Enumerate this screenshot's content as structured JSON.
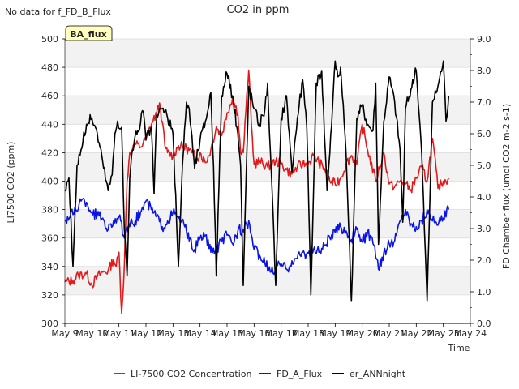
{
  "nodata_note": "No data for f_FD_B_Flux",
  "badge": "BA_flux",
  "chart_data": {
    "type": "line",
    "title": "CO2 in ppm",
    "xlabel": "Time",
    "ylabel_left": "LI7500 CO2 (ppm)",
    "ylabel_right": "FD Chamber flux (umol CO2 m-2 s-1)",
    "x_ticks": [
      "May 9",
      "May 10",
      "May 11",
      "May 12",
      "May 13",
      "May 14",
      "May 15",
      "May 16",
      "May 17",
      "May 18",
      "May 19",
      "May 20",
      "May 21",
      "May 22",
      "May 23",
      "May 24"
    ],
    "xlim": [
      0,
      15
    ],
    "ylim_left": [
      300,
      500
    ],
    "ylim_right": [
      0.0,
      9.0
    ],
    "yticks_left": [
      300,
      320,
      340,
      360,
      380,
      400,
      420,
      440,
      460,
      480,
      500
    ],
    "yticks_right": [
      "0.0",
      "1.0",
      "2.0",
      "3.0",
      "4.0",
      "5.0",
      "6.0",
      "7.0",
      "8.0",
      "9.0"
    ],
    "grid": true,
    "legend_placement": "bottom",
    "series": [
      {
        "name": "LI-7500 CO2 Concentration",
        "axis": "left",
        "color": "#e31a1c",
        "x": [
          0.0,
          0.3,
          0.5,
          0.8,
          1.0,
          1.2,
          1.4,
          1.6,
          1.8,
          1.9,
          2.0,
          2.1,
          2.2,
          2.3,
          2.4,
          2.5,
          2.6,
          2.8,
          3.0,
          3.2,
          3.4,
          3.5,
          3.6,
          3.7,
          3.8,
          4.0,
          4.2,
          4.5,
          4.7,
          4.9,
          5.0,
          5.2,
          5.4,
          5.6,
          5.8,
          6.0,
          6.2,
          6.4,
          6.5,
          6.6,
          6.7,
          6.8,
          6.9,
          7.0,
          7.2,
          7.5,
          7.8,
          8.0,
          8.2,
          8.4,
          8.6,
          8.8,
          9.0,
          9.2,
          9.4,
          9.6,
          9.8,
          10.0,
          10.2,
          10.4,
          10.6,
          10.8,
          11.0,
          11.2,
          11.5,
          11.8,
          12.0,
          12.2,
          12.4,
          12.6,
          12.8,
          13.0,
          13.2,
          13.4,
          13.6,
          13.8,
          14.0,
          14.2
        ],
        "y": [
          329,
          330,
          334,
          335,
          327,
          333,
          336,
          337,
          345,
          340,
          350,
          307,
          340,
          400,
          420,
          422,
          426,
          424,
          430,
          440,
          448,
          455,
          442,
          425,
          420,
          418,
          425,
          423,
          420,
          416,
          420,
          413,
          422,
          438,
          432,
          448,
          458,
          448,
          420,
          420,
          450,
          478,
          440,
          412,
          414,
          410,
          414,
          412,
          408,
          405,
          410,
          412,
          412,
          418,
          413,
          409,
          400,
          398,
          402,
          412,
          418,
          412,
          440,
          422,
          400,
          420,
          398,
          396,
          400,
          398,
          394,
          402,
          410,
          400,
          430,
          395,
          400,
          402
        ],
        "noise": 3.5
      },
      {
        "name": "FD_A_Flux",
        "axis": "left",
        "color": "#0a14e6",
        "x": [
          0.0,
          0.2,
          0.4,
          0.6,
          0.8,
          1.0,
          1.2,
          1.4,
          1.6,
          1.8,
          2.0,
          2.2,
          2.4,
          2.6,
          2.8,
          3.0,
          3.2,
          3.4,
          3.6,
          3.8,
          4.0,
          4.2,
          4.4,
          4.6,
          4.8,
          5.0,
          5.2,
          5.4,
          5.6,
          5.8,
          6.0,
          6.2,
          6.4,
          6.6,
          6.8,
          7.0,
          7.2,
          7.4,
          7.6,
          7.8,
          8.0,
          8.2,
          8.4,
          8.6,
          8.8,
          9.0,
          9.2,
          9.4,
          9.6,
          9.8,
          10.0,
          10.2,
          10.4,
          10.6,
          10.8,
          11.0,
          11.2,
          11.4,
          11.6,
          11.8,
          12.0,
          12.2,
          12.4,
          12.6,
          12.8,
          13.0,
          13.2,
          13.4,
          13.6,
          13.8,
          14.0,
          14.2
        ],
        "y": [
          372,
          375,
          380,
          386,
          385,
          378,
          376,
          374,
          366,
          372,
          375,
          360,
          368,
          372,
          378,
          386,
          380,
          375,
          368,
          372,
          378,
          374,
          370,
          358,
          352,
          360,
          362,
          350,
          352,
          358,
          362,
          356,
          365,
          366,
          372,
          352,
          348,
          342,
          336,
          338,
          342,
          338,
          344,
          346,
          350,
          349,
          352,
          350,
          355,
          360,
          364,
          368,
          365,
          359,
          366,
          357,
          364,
          356,
          338,
          350,
          356,
          358,
          372,
          380,
          370,
          368,
          372,
          380,
          372,
          369,
          374,
          380
        ],
        "noise": 4.0
      },
      {
        "name": "er_ANNnight",
        "axis": "right",
        "color": "#000000",
        "x": [
          0.0,
          0.15,
          0.3,
          0.45,
          0.6,
          0.8,
          1.0,
          1.2,
          1.4,
          1.6,
          1.75,
          1.85,
          1.95,
          2.1,
          2.2,
          2.3,
          2.4,
          2.5,
          2.7,
          2.9,
          3.0,
          3.2,
          3.3,
          3.4,
          3.6,
          3.8,
          4.0,
          4.2,
          4.35,
          4.5,
          4.6,
          4.8,
          5.0,
          5.2,
          5.4,
          5.5,
          5.6,
          5.8,
          6.0,
          6.2,
          6.4,
          6.5,
          6.6,
          6.8,
          7.0,
          7.2,
          7.4,
          7.5,
          7.6,
          7.8,
          8.0,
          8.2,
          8.4,
          8.6,
          8.8,
          8.95,
          9.1,
          9.3,
          9.5,
          9.7,
          9.9,
          10.0,
          10.1,
          10.2,
          10.4,
          10.6,
          10.8,
          11.0,
          11.2,
          11.4,
          11.5,
          11.6,
          11.8,
          12.0,
          12.2,
          12.4,
          12.5,
          12.6,
          12.8,
          13.0,
          13.2,
          13.4,
          13.6,
          13.8,
          14.0,
          14.1,
          14.2
        ],
        "y": [
          4.2,
          4.6,
          1.8,
          5.0,
          5.5,
          6.3,
          6.5,
          6.0,
          5.1,
          4.2,
          4.7,
          6.0,
          6.4,
          6.2,
          3.0,
          1.5,
          4.6,
          5.5,
          6.1,
          6.7,
          5.8,
          6.2,
          4.1,
          6.6,
          6.8,
          6.5,
          6.0,
          1.8,
          5.0,
          7.0,
          6.8,
          4.9,
          5.8,
          6.4,
          7.3,
          5.0,
          1.5,
          7.2,
          7.9,
          7.2,
          6.0,
          5.0,
          1.2,
          7.5,
          6.8,
          6.3,
          6.8,
          7.6,
          5.5,
          1.2,
          6.5,
          7.2,
          4.8,
          6.5,
          7.7,
          6.2,
          0.9,
          7.6,
          8.0,
          4.2,
          6.8,
          8.3,
          7.8,
          8.1,
          5.4,
          0.7,
          6.5,
          6.9,
          6.3,
          6.1,
          7.6,
          2.5,
          6.4,
          7.8,
          7.0,
          5.5,
          3.2,
          6.8,
          7.4,
          8.0,
          5.4,
          0.7,
          7.0,
          7.5,
          8.3,
          6.4,
          7.2
        ],
        "noise": 0.18
      }
    ]
  }
}
